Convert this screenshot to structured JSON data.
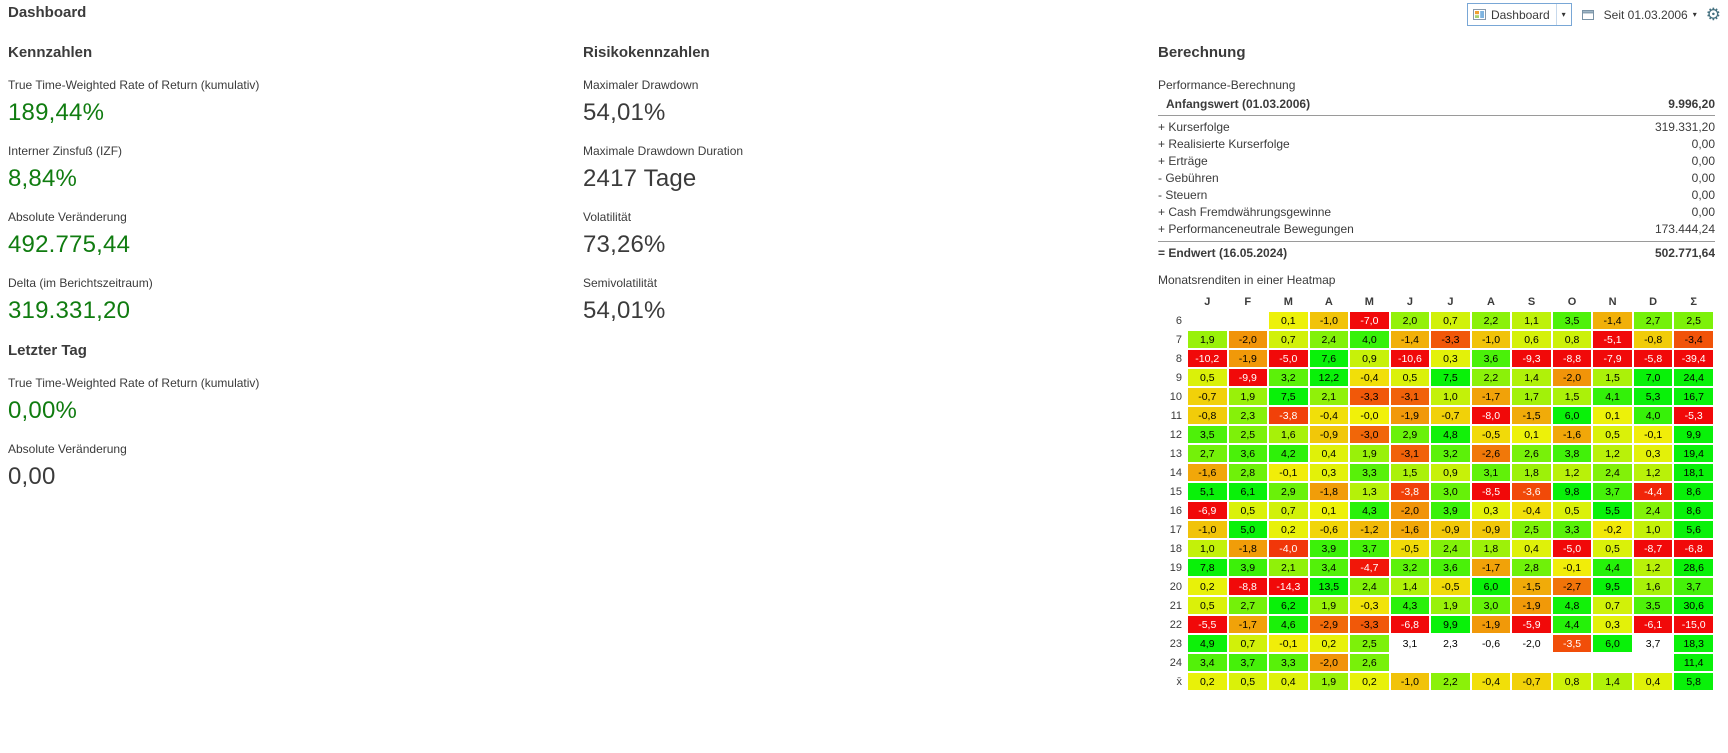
{
  "page_title": "Dashboard",
  "toolbar": {
    "dashboard_selector_label": "Dashboard",
    "period_label": "Seit 01.03.2006"
  },
  "icons": {
    "chevron_down": "▾",
    "gear": "⚙"
  },
  "colors": {
    "positive": "#107C10",
    "neutral": "#3b3b3b",
    "combo_border": "#79a7d6",
    "gear": "#44707f",
    "rule": "#9a9a9a"
  },
  "kennzahlen": {
    "title": "Kennzahlen",
    "items": [
      {
        "label": "True Time-Weighted Rate of Return (kumulativ)",
        "value": "189,44%",
        "color": "green"
      },
      {
        "label": "Interner Zinsfuß (IZF)",
        "value": "8,84%",
        "color": "green"
      },
      {
        "label": "Absolute Veränderung",
        "value": "492.775,44",
        "color": "green"
      },
      {
        "label": "Delta (im Berichtszeitraum)",
        "value": "319.331,20",
        "color": "green"
      }
    ]
  },
  "letzter_tag": {
    "title": "Letzter Tag",
    "items": [
      {
        "label": "True Time-Weighted Rate of Return (kumulativ)",
        "value": "0,00%",
        "color": "green"
      },
      {
        "label": "Absolute Veränderung",
        "value": "0,00",
        "color": "dark"
      }
    ]
  },
  "risikokennzahlen": {
    "title": "Risikokennzahlen",
    "items": [
      {
        "label": "Maximaler Drawdown",
        "value": "54,01%",
        "color": "dark"
      },
      {
        "label": "Maximale Drawdown Duration",
        "value": "2417 Tage",
        "color": "dark"
      },
      {
        "label": "Volatilität",
        "value": "73,26%",
        "color": "dark"
      },
      {
        "label": "Semivolatilität",
        "value": "54,01%",
        "color": "dark"
      }
    ]
  },
  "berechnung": {
    "title": "Berechnung",
    "calc_title": "Performance-Berechnung",
    "rows": [
      {
        "label": "Anfangswert (01.03.2006)",
        "value": "9.996,20",
        "style": "start"
      },
      {
        "label": "+ Kurserfolge",
        "value": "319.331,20"
      },
      {
        "label": "+ Realisierte Kurserfolge",
        "value": "0,00"
      },
      {
        "label": "+ Erträge",
        "value": "0,00"
      },
      {
        "label": "- Gebühren",
        "value": "0,00"
      },
      {
        "label": "- Steuern",
        "value": "0,00"
      },
      {
        "label": "+ Cash Fremdwährungsgewinne",
        "value": "0,00"
      },
      {
        "label": "+ Performanceneutrale Bewegungen",
        "value": "173.444,24"
      },
      {
        "label": "= Endwert (16.05.2024)",
        "value": "502.771,64",
        "style": "end"
      }
    ],
    "heatmap_title": "Monatsrenditen in einer Heatmap"
  },
  "chart_data": {
    "type": "heatmap",
    "title": "Monatsrenditen in einer Heatmap",
    "unit": "percent, monthly returns",
    "color_scale": {
      "min": -5,
      "max": 5,
      "negative": "red",
      "zero": "yellow",
      "positive": "green"
    },
    "columns": [
      "J",
      "F",
      "M",
      "A",
      "M",
      "J",
      "J",
      "A",
      "S",
      "O",
      "N",
      "D",
      "Σ"
    ],
    "rows": [
      {
        "label": "6",
        "values": [
          null,
          null,
          "0,1",
          "-1,0",
          "-7,0",
          "2,0",
          "0,7",
          "2,2",
          "1,1",
          "3,5",
          "-1,4",
          "2,7",
          "2,5"
        ]
      },
      {
        "label": "7",
        "values": [
          "1,9",
          "-2,0",
          "0,7",
          "2,4",
          "4,0",
          "-1,4",
          "-3,3",
          "-1,0",
          "0,6",
          "0,8",
          "-5,1",
          "-0,8",
          "-3,4"
        ]
      },
      {
        "label": "8",
        "values": [
          "-10,2",
          "-1,9",
          "-5,0",
          "7,6",
          "0,9",
          "-10,6",
          "0,3",
          "3,6",
          "-9,3",
          "-8,8",
          "-7,9",
          "-5,8",
          "-39,4"
        ]
      },
      {
        "label": "9",
        "values": [
          "0,5",
          "-9,9",
          "3,2",
          "12,2",
          "-0,4",
          "0,5",
          "7,5",
          "2,2",
          "1,4",
          "-2,0",
          "1,5",
          "7,0",
          "24,4"
        ]
      },
      {
        "label": "10",
        "values": [
          "-0,7",
          "1,9",
          "7,5",
          "2,1",
          "-3,3",
          "-3,1",
          "1,0",
          "-1,7",
          "1,7",
          "1,5",
          "4,1",
          "5,3",
          "16,7"
        ]
      },
      {
        "label": "11",
        "values": [
          "-0,8",
          "2,3",
          "-3,8",
          "-0,4",
          "-0,0",
          "-1,9",
          "-0,7",
          "-8,0",
          "-1,5",
          "6,0",
          "0,1",
          "4,0",
          "-5,3"
        ]
      },
      {
        "label": "12",
        "values": [
          "3,5",
          "2,5",
          "1,6",
          "-0,9",
          "-3,0",
          "2,9",
          "4,8",
          "-0,5",
          "0,1",
          "-1,6",
          "0,5",
          "-0,1",
          "9,9"
        ]
      },
      {
        "label": "13",
        "values": [
          "2,7",
          "3,6",
          "4,2",
          "0,4",
          "1,9",
          "-3,1",
          "3,2",
          "-2,6",
          "2,6",
          "3,8",
          "1,2",
          "0,3",
          "19,4"
        ]
      },
      {
        "label": "14",
        "values": [
          "-1,6",
          "2,8",
          "-0,1",
          "0,3",
          "3,3",
          "1,5",
          "0,9",
          "3,1",
          "1,8",
          "1,2",
          "2,4",
          "1,2",
          "18,1"
        ]
      },
      {
        "label": "15",
        "values": [
          "5,1",
          "6,1",
          "2,9",
          "-1,8",
          "1,3",
          "-3,8",
          "3,0",
          "-8,5",
          "-3,6",
          "9,8",
          "3,7",
          "-4,4",
          "8,6"
        ]
      },
      {
        "label": "16",
        "values": [
          "-6,9",
          "0,5",
          "0,7",
          "0,1",
          "4,3",
          "-2,0",
          "3,9",
          "0,3",
          "-0,4",
          "0,5",
          "5,5",
          "2,4",
          "8,6"
        ]
      },
      {
        "label": "17",
        "values": [
          "-1,0",
          "5,0",
          "0,2",
          "-0,6",
          "-1,2",
          "-1,6",
          "-0,9",
          "-0,9",
          "2,5",
          "3,3",
          "-0,2",
          "1,0",
          "5,6"
        ]
      },
      {
        "label": "18",
        "values": [
          "1,0",
          "-1,8",
          "-4,0",
          "3,9",
          "3,7",
          "-0,5",
          "2,4",
          "1,8",
          "0,4",
          "-5,0",
          "0,5",
          "-8,7",
          "-6,8"
        ]
      },
      {
        "label": "19",
        "values": [
          "7,8",
          "3,9",
          "2,1",
          "3,4",
          "-4,7",
          "3,2",
          "3,6",
          "-1,7",
          "2,8",
          "-0,1",
          "4,4",
          "1,2",
          "28,6"
        ]
      },
      {
        "label": "20",
        "values": [
          "0,2",
          "-8,8",
          "-14,3",
          "13,5",
          "2,4",
          "1,4",
          "-0,5",
          "6,0",
          "-1,5",
          "-2,7",
          "9,5",
          "1,6",
          "3,7"
        ]
      },
      {
        "label": "21",
        "values": [
          "0,5",
          "2,7",
          "6,2",
          "1,9",
          "-0,3",
          "4,3",
          "1,9",
          "3,0",
          "-1,9",
          "4,8",
          "0,7",
          "3,5",
          "30,6"
        ]
      },
      {
        "label": "22",
        "values": [
          "-5,5",
          "-1,7",
          "4,6",
          "-2,9",
          "-3,3",
          "-6,8",
          "9,9",
          "-1,9",
          "-5,9",
          "4,4",
          "0,3",
          "-6,1",
          "-15,0"
        ]
      },
      {
        "label": "23",
        "values": [
          "4,9",
          "0,7",
          "-0,1",
          "0,2",
          "2,5",
          "3,1",
          "2,3",
          "-0,6",
          "-2,0",
          "-3,5",
          "6,0",
          "3,7",
          "18,3"
        ],
        "plain": [
          5,
          6,
          7,
          8,
          11
        ]
      },
      {
        "label": "24",
        "values": [
          "3,4",
          "3,7",
          "3,3",
          "-2,0",
          "2,6",
          null,
          null,
          null,
          null,
          null,
          null,
          null,
          "11,4"
        ]
      },
      {
        "label": "x̄",
        "values": [
          "0,2",
          "0,5",
          "0,4",
          "1,9",
          "0,2",
          "-1,0",
          "2,2",
          "-0,4",
          "-0,7",
          "0,8",
          "1,4",
          "0,4",
          "5,8"
        ]
      }
    ]
  }
}
